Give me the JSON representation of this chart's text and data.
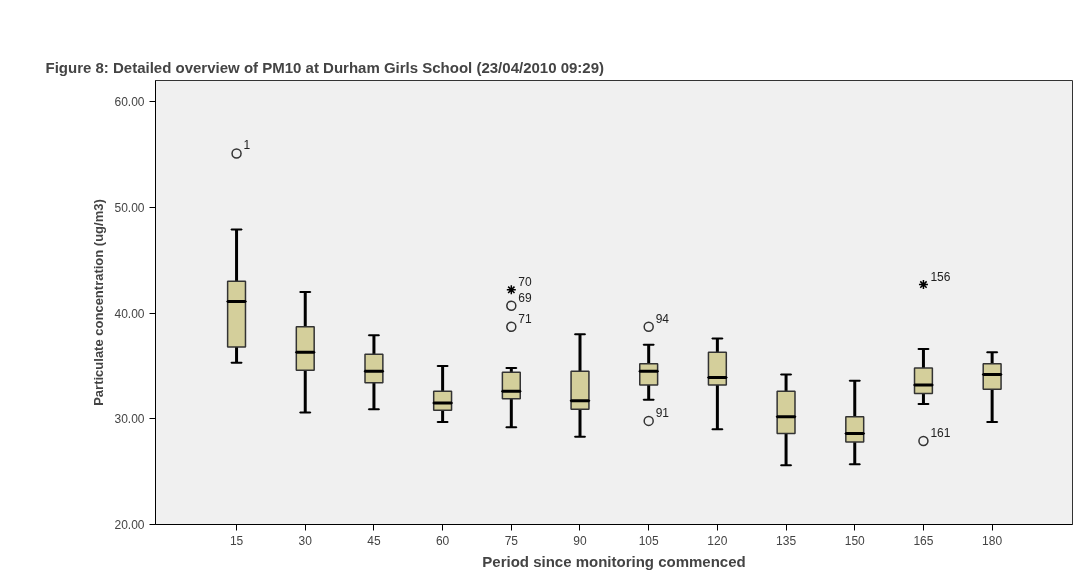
{
  "chart_data": {
    "type": "box",
    "title": "Figure 8: Detailed overview of PM10 at Durham Girls School (23/04/2010 09:29)",
    "xlabel": "Period since monitoring commenced",
    "ylabel": "Particulate concentration (ug/m3)",
    "categories": [
      "15",
      "30",
      "45",
      "60",
      "75",
      "90",
      "105",
      "120",
      "135",
      "150",
      "165",
      "180"
    ],
    "ylim": [
      20,
      62
    ],
    "yticks": [
      {
        "value": 20,
        "label": "20.00"
      },
      {
        "value": 30,
        "label": "30.00"
      },
      {
        "value": 40,
        "label": "40.00"
      },
      {
        "value": 50,
        "label": "50.00"
      },
      {
        "value": 60,
        "label": "60.00"
      }
    ],
    "grid": false,
    "series": [
      {
        "color": "#d4cf9b",
        "boxes": [
          {
            "low": 35.3,
            "q1": 36.8,
            "median": 41.1,
            "q3": 43.0,
            "high": 47.9
          },
          {
            "low": 30.6,
            "q1": 34.6,
            "median": 36.3,
            "q3": 38.7,
            "high": 42.0
          },
          {
            "low": 30.9,
            "q1": 33.4,
            "median": 34.5,
            "q3": 36.1,
            "high": 37.9
          },
          {
            "low": 29.7,
            "q1": 30.8,
            "median": 31.5,
            "q3": 32.6,
            "high": 35.0
          },
          {
            "low": 29.2,
            "q1": 31.9,
            "median": 32.6,
            "q3": 34.4,
            "high": 34.8
          },
          {
            "low": 28.3,
            "q1": 30.9,
            "median": 31.7,
            "q3": 34.5,
            "high": 38.0
          },
          {
            "low": 31.8,
            "q1": 33.2,
            "median": 34.5,
            "q3": 35.2,
            "high": 37.0
          },
          {
            "low": 29.0,
            "q1": 33.2,
            "median": 33.9,
            "q3": 36.3,
            "high": 37.6
          },
          {
            "low": 25.6,
            "q1": 28.6,
            "median": 30.2,
            "q3": 32.6,
            "high": 34.2
          },
          {
            "low": 25.7,
            "q1": 27.8,
            "median": 28.6,
            "q3": 30.2,
            "high": 33.6
          },
          {
            "low": 31.4,
            "q1": 32.4,
            "median": 33.2,
            "q3": 34.8,
            "high": 36.6
          },
          {
            "low": 29.7,
            "q1": 32.8,
            "median": 34.2,
            "q3": 35.2,
            "high": 36.3
          }
        ]
      },
      {
        "type": "scatter",
        "marker": "circle",
        "color": "#333333",
        "x": [
          "15",
          "75",
          "75",
          "105",
          "105",
          "165"
        ],
        "values": [
          55.1,
          40.7,
          38.7,
          38.7,
          29.8,
          27.9
        ]
      },
      {
        "type": "scatter",
        "marker": "cross",
        "color": "#000000",
        "x": [
          "75",
          "165"
        ],
        "values": [
          42.2,
          42.7
        ]
      }
    ],
    "annotations": [
      {
        "text": "1",
        "x": "15",
        "y": 55.1
      },
      {
        "text": "70",
        "x": "75",
        "y": 42.2
      },
      {
        "text": "69",
        "x": "75",
        "y": 40.7
      },
      {
        "text": "71",
        "x": "75",
        "y": 38.7
      },
      {
        "text": "94",
        "x": "105",
        "y": 38.7
      },
      {
        "text": "91",
        "x": "105",
        "y": 29.8
      },
      {
        "text": "156",
        "x": "165",
        "y": 42.7
      },
      {
        "text": "161",
        "x": "165",
        "y": 27.9
      }
    ]
  }
}
